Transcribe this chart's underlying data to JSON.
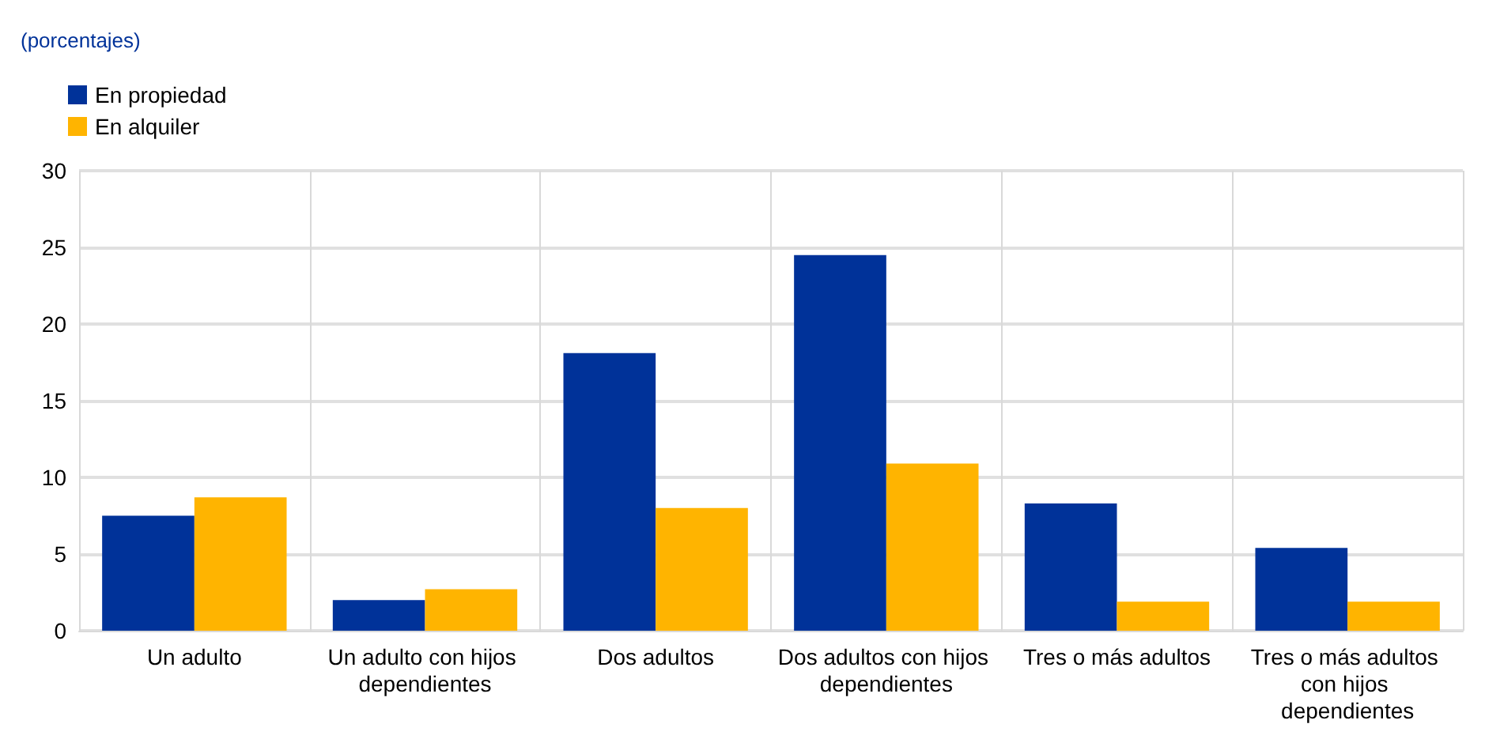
{
  "chart_data": {
    "type": "bar",
    "subtitle": "(porcentajes)",
    "categories": [
      "Un adulto",
      "Un adulto con hijos dependientes",
      "Dos adultos",
      "Dos adultos con hijos dependientes",
      "Tres o más adultos",
      "Tres o más adultos con hijos dependientes"
    ],
    "series": [
      {
        "name": "En propiedad",
        "color": "#003299",
        "values": [
          7.5,
          2.0,
          18.1,
          24.5,
          8.3,
          5.4
        ]
      },
      {
        "name": "En alquiler",
        "color": "#ffb400",
        "values": [
          8.7,
          2.7,
          8.0,
          10.9,
          1.9,
          1.9
        ]
      }
    ],
    "ylim": [
      0,
      30
    ],
    "yticks": [
      0,
      5,
      10,
      15,
      20,
      25,
      30
    ],
    "grid": true,
    "legend": "top left"
  }
}
